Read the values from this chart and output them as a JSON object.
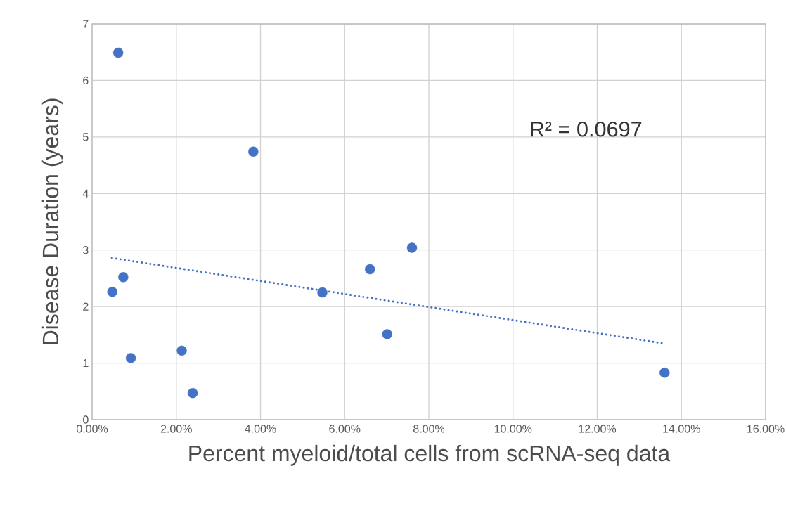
{
  "chart_data": {
    "type": "scatter",
    "xlabel": "Percent myeloid/total cells from scRNA-seq data",
    "ylabel": "Disease Duration (years)",
    "annotations": [
      "R² = 0.0697"
    ],
    "series": [
      {
        "color": "#4472c4",
        "marker": "circle",
        "x": [
          0.62,
          3.83,
          0.48,
          0.74,
          0.92,
          2.13,
          2.39,
          5.47,
          6.6,
          7.01,
          7.6,
          13.6
        ],
        "values": [
          6.49,
          4.74,
          2.26,
          2.52,
          1.09,
          1.22,
          0.47,
          2.25,
          2.66,
          1.51,
          3.04,
          0.83
        ]
      },
      {
        "type": "line",
        "color": "#4472c4",
        "line_style": "dotted",
        "marker": "none",
        "x": [
          0.47,
          13.56
        ],
        "values": [
          2.86,
          1.35
        ]
      }
    ],
    "xlim": [
      0,
      16
    ],
    "xticks": [
      {
        "value": 0,
        "label": "0.00%"
      },
      {
        "value": 2,
        "label": "2.00%"
      },
      {
        "value": 4,
        "label": "4.00%"
      },
      {
        "value": 6,
        "label": "6.00%"
      },
      {
        "value": 8,
        "label": "8.00%"
      },
      {
        "value": 10,
        "label": "10.00%"
      },
      {
        "value": 12,
        "label": "12.00%"
      },
      {
        "value": 14,
        "label": "14.00%"
      },
      {
        "value": 16,
        "label": "16.00%"
      }
    ],
    "ylim": [
      0,
      7
    ],
    "yticks": [
      0,
      1,
      2,
      3,
      4,
      5,
      6,
      7
    ],
    "grid": true
  }
}
